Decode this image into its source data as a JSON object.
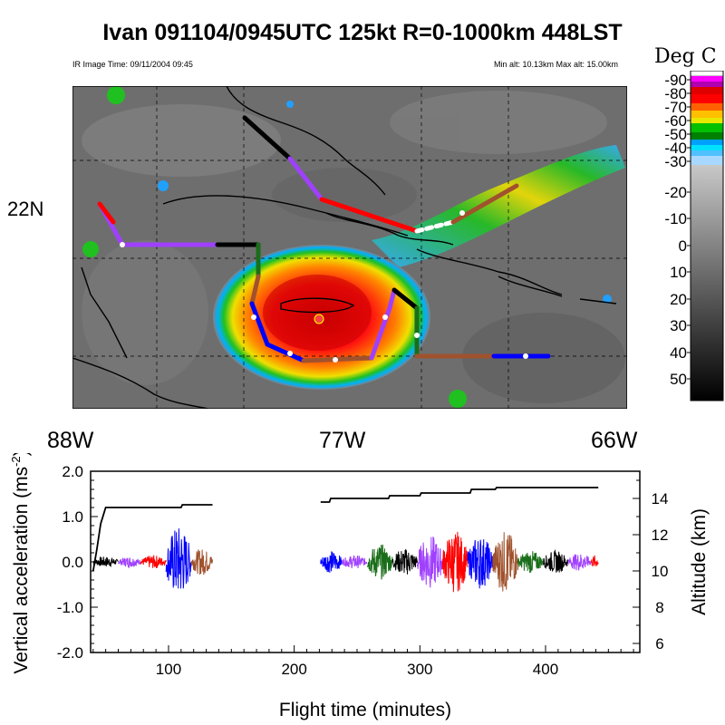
{
  "title": "Ivan 091104/0945UTC 125kt  R=0-1000km 448LST",
  "map": {
    "ir_time_label": "IR Image Time: 09/11/2004 09:45",
    "alt_label": "Min alt: 10.13km  Max alt: 15.00km",
    "lon_labels": [
      "88W",
      "77W",
      "66W"
    ],
    "lat_labels": [
      "22N"
    ]
  },
  "colorbar": {
    "title": "Deg C",
    "labels": [
      "-90",
      "-80",
      "-70",
      "-60",
      "-50",
      "-40",
      "-30",
      "-20",
      "-10",
      "0",
      "10",
      "20",
      "30",
      "40",
      "50"
    ]
  },
  "colors": {
    "segment_palette": [
      "#0000ff",
      "#a040ff",
      "#000000",
      "#ff0000",
      "#1a6e1a",
      "#a0522d"
    ]
  },
  "chart_data": {
    "type": "line",
    "xlabel": "Flight time (minutes)",
    "ylabel": "Vertical acceleration (ms-2)",
    "y2label": "Altitude (km)",
    "xlim": [
      38,
      475
    ],
    "ylim": [
      -2.0,
      2.0
    ],
    "y2lim": [
      5.5,
      15.5
    ],
    "x_ticks": [
      "100",
      "200",
      "300",
      "400"
    ],
    "y_ticks": [
      "2.0",
      "1.0",
      "0.0",
      "-1.0",
      "-2.0"
    ],
    "y2_ticks": [
      "6",
      "8",
      "10",
      "12",
      "14"
    ],
    "altitude_series": [
      {
        "points": [
          [
            40,
            10.0
          ],
          [
            43,
            11.2
          ],
          [
            46,
            12.6
          ],
          [
            50,
            13.5
          ],
          [
            100,
            13.5
          ],
          [
            110,
            13.5
          ],
          [
            111,
            13.65
          ],
          [
            135,
            13.65
          ]
        ]
      },
      {
        "points": [
          [
            221,
            13.8
          ],
          [
            228,
            13.8
          ],
          [
            229,
            14.0
          ],
          [
            275,
            14.0
          ],
          [
            276,
            14.15
          ],
          [
            300,
            14.15
          ],
          [
            301,
            14.3
          ],
          [
            340,
            14.3
          ],
          [
            341,
            14.5
          ],
          [
            360,
            14.5
          ],
          [
            361,
            14.6
          ],
          [
            442,
            14.6
          ]
        ]
      }
    ],
    "acceleration_segments": [
      {
        "color": "black",
        "x": [
          40,
          60
        ],
        "amp": 0.12
      },
      {
        "color": "purple",
        "x": [
          60,
          78
        ],
        "amp": 0.12
      },
      {
        "color": "red",
        "x": [
          78,
          98
        ],
        "amp": 0.15
      },
      {
        "color": "blue",
        "x": [
          98,
          118
        ],
        "amp": 0.8
      },
      {
        "color": "brown",
        "x": [
          118,
          135
        ],
        "amp": 0.3
      },
      {
        "color": "blue",
        "x": [
          221,
          238
        ],
        "amp": 0.25
      },
      {
        "color": "purple",
        "x": [
          238,
          258
        ],
        "amp": 0.15
      },
      {
        "color": "green",
        "x": [
          258,
          278
        ],
        "amp": 0.4
      },
      {
        "color": "black",
        "x": [
          278,
          298
        ],
        "amp": 0.3
      },
      {
        "color": "purple",
        "x": [
          298,
          318
        ],
        "amp": 0.6
      },
      {
        "color": "red",
        "x": [
          318,
          338
        ],
        "amp": 0.7
      },
      {
        "color": "blue",
        "x": [
          338,
          358
        ],
        "amp": 0.6
      },
      {
        "color": "brown",
        "x": [
          358,
          378
        ],
        "amp": 0.7
      },
      {
        "color": "green",
        "x": [
          378,
          398
        ],
        "amp": 0.25
      },
      {
        "color": "black",
        "x": [
          398,
          418
        ],
        "amp": 0.25
      },
      {
        "color": "purple",
        "x": [
          418,
          436
        ],
        "amp": 0.2
      },
      {
        "color": "red",
        "x": [
          436,
          442
        ],
        "amp": 0.15
      }
    ]
  }
}
